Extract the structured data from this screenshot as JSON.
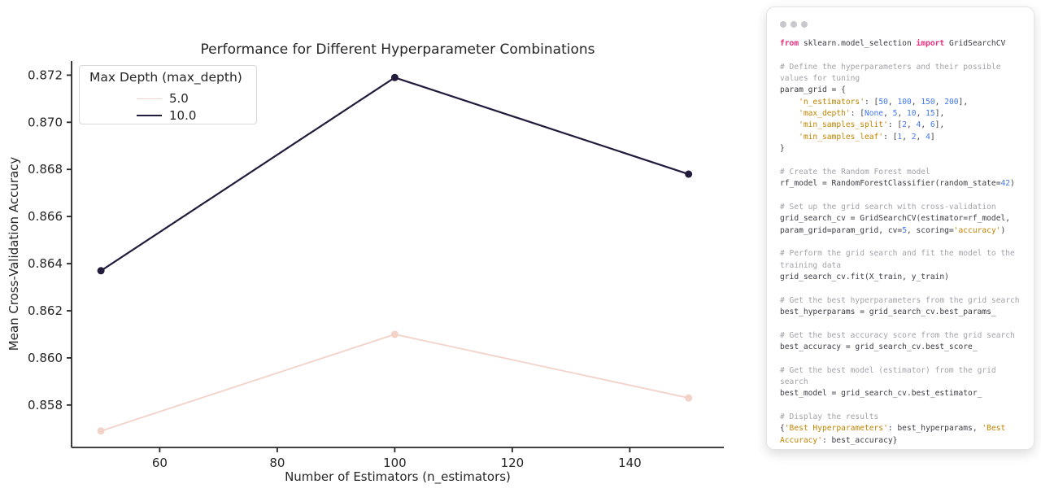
{
  "chart_data": {
    "type": "line",
    "title": "Performance for Different Hyperparameter Combinations",
    "xlabel": "Number of Estimators (n_estimators)",
    "ylabel": "Mean Cross-Validation Accuracy",
    "x": [
      50,
      100,
      150
    ],
    "series": [
      {
        "name": "5.0",
        "color": "#f3d2c9",
        "linewidth": 1.8,
        "values": [
          0.8569,
          0.861,
          0.8583
        ]
      },
      {
        "name": "10.0",
        "color": "#231b3c",
        "linewidth": 2.2,
        "values": [
          0.8637,
          0.8719,
          0.8678
        ]
      }
    ],
    "legend_title": "Max Depth (max_depth)",
    "legend_position": "upper left",
    "xticks": [
      60,
      80,
      100,
      120,
      140
    ],
    "yticks": [
      0.858,
      0.86,
      0.862,
      0.864,
      0.866,
      0.868,
      0.87,
      0.872
    ],
    "xlim": [
      45,
      156
    ],
    "ylim": [
      0.8562,
      0.8726
    ],
    "grid": false,
    "axis_color": "#262626",
    "marker": "circle",
    "marker_radius": 4.5
  },
  "code_panel": {
    "dot_count": 3,
    "dot_color": "#c9c9cd",
    "colors": {
      "plain": "#3b3b43",
      "comment": "#a2a3a9",
      "keyword": "#ec2d7c",
      "string": "#c18401",
      "number": "#4078f2"
    },
    "lines": [
      {
        "tokens": [
          {
            "c": "keyword",
            "t": "from"
          },
          {
            "c": "plain",
            "t": " sklearn.model_selection "
          },
          {
            "c": "keyword",
            "t": "import"
          },
          {
            "c": "plain",
            "t": " GridSearchCV"
          }
        ]
      },
      {
        "tokens": []
      },
      {
        "tokens": [
          {
            "c": "comment",
            "t": "# Define the hyperparameters and their possible"
          }
        ]
      },
      {
        "tokens": [
          {
            "c": "comment",
            "t": "values for tuning"
          }
        ]
      },
      {
        "tokens": [
          {
            "c": "plain",
            "t": "param_grid = {"
          }
        ]
      },
      {
        "tokens": [
          {
            "c": "plain",
            "t": "    "
          },
          {
            "c": "string",
            "t": "'n_estimators'"
          },
          {
            "c": "plain",
            "t": ": ["
          },
          {
            "c": "number",
            "t": "50"
          },
          {
            "c": "plain",
            "t": ", "
          },
          {
            "c": "number",
            "t": "100"
          },
          {
            "c": "plain",
            "t": ", "
          },
          {
            "c": "number",
            "t": "150"
          },
          {
            "c": "plain",
            "t": ", "
          },
          {
            "c": "number",
            "t": "200"
          },
          {
            "c": "plain",
            "t": "],"
          }
        ]
      },
      {
        "tokens": [
          {
            "c": "plain",
            "t": "    "
          },
          {
            "c": "string",
            "t": "'max_depth'"
          },
          {
            "c": "plain",
            "t": ": ["
          },
          {
            "c": "number",
            "t": "None"
          },
          {
            "c": "plain",
            "t": ", "
          },
          {
            "c": "number",
            "t": "5"
          },
          {
            "c": "plain",
            "t": ", "
          },
          {
            "c": "number",
            "t": "10"
          },
          {
            "c": "plain",
            "t": ", "
          },
          {
            "c": "number",
            "t": "15"
          },
          {
            "c": "plain",
            "t": "],"
          }
        ]
      },
      {
        "tokens": [
          {
            "c": "plain",
            "t": "    "
          },
          {
            "c": "string",
            "t": "'min_samples_split'"
          },
          {
            "c": "plain",
            "t": ": ["
          },
          {
            "c": "number",
            "t": "2"
          },
          {
            "c": "plain",
            "t": ", "
          },
          {
            "c": "number",
            "t": "4"
          },
          {
            "c": "plain",
            "t": ", "
          },
          {
            "c": "number",
            "t": "6"
          },
          {
            "c": "plain",
            "t": "],"
          }
        ]
      },
      {
        "tokens": [
          {
            "c": "plain",
            "t": "    "
          },
          {
            "c": "string",
            "t": "'min_samples_leaf'"
          },
          {
            "c": "plain",
            "t": ": ["
          },
          {
            "c": "number",
            "t": "1"
          },
          {
            "c": "plain",
            "t": ", "
          },
          {
            "c": "number",
            "t": "2"
          },
          {
            "c": "plain",
            "t": ", "
          },
          {
            "c": "number",
            "t": "4"
          },
          {
            "c": "plain",
            "t": "]"
          }
        ]
      },
      {
        "tokens": [
          {
            "c": "plain",
            "t": "}"
          }
        ]
      },
      {
        "tokens": []
      },
      {
        "tokens": [
          {
            "c": "comment",
            "t": "# Create the Random Forest model"
          }
        ]
      },
      {
        "tokens": [
          {
            "c": "plain",
            "t": "rf_model = RandomForestClassifier(random_state="
          },
          {
            "c": "number",
            "t": "42"
          },
          {
            "c": "plain",
            "t": ")"
          }
        ]
      },
      {
        "tokens": []
      },
      {
        "tokens": [
          {
            "c": "comment",
            "t": "# Set up the grid search with cross-validation"
          }
        ]
      },
      {
        "tokens": [
          {
            "c": "plain",
            "t": "grid_search_cv = GridSearchCV(estimator=rf_model,"
          }
        ]
      },
      {
        "tokens": [
          {
            "c": "plain",
            "t": "param_grid=param_grid, cv="
          },
          {
            "c": "number",
            "t": "5"
          },
          {
            "c": "plain",
            "t": ", scoring="
          },
          {
            "c": "string",
            "t": "'accuracy'"
          },
          {
            "c": "plain",
            "t": ")"
          }
        ]
      },
      {
        "tokens": []
      },
      {
        "tokens": [
          {
            "c": "comment",
            "t": "# Perform the grid search and fit the model to the"
          }
        ]
      },
      {
        "tokens": [
          {
            "c": "comment",
            "t": "training data"
          }
        ]
      },
      {
        "tokens": [
          {
            "c": "plain",
            "t": "grid_search_cv.fit(X_train, y_train)"
          }
        ]
      },
      {
        "tokens": []
      },
      {
        "tokens": [
          {
            "c": "comment",
            "t": "# Get the best hyperparameters from the grid search"
          }
        ]
      },
      {
        "tokens": [
          {
            "c": "plain",
            "t": "best_hyperparams = grid_search_cv.best_params_"
          }
        ]
      },
      {
        "tokens": []
      },
      {
        "tokens": [
          {
            "c": "comment",
            "t": "# Get the best accuracy score from the grid search"
          }
        ]
      },
      {
        "tokens": [
          {
            "c": "plain",
            "t": "best_accuracy = grid_search_cv.best_score_"
          }
        ]
      },
      {
        "tokens": []
      },
      {
        "tokens": [
          {
            "c": "comment",
            "t": "# Get the best model (estimator) from the grid"
          }
        ]
      },
      {
        "tokens": [
          {
            "c": "comment",
            "t": "search"
          }
        ]
      },
      {
        "tokens": [
          {
            "c": "plain",
            "t": "best_model = grid_search_cv.best_estimator_"
          }
        ]
      },
      {
        "tokens": []
      },
      {
        "tokens": [
          {
            "c": "comment",
            "t": "# Display the results"
          }
        ]
      },
      {
        "tokens": [
          {
            "c": "plain",
            "t": "{"
          },
          {
            "c": "string",
            "t": "'Best Hyperparameters'"
          },
          {
            "c": "plain",
            "t": ": best_hyperparams, "
          },
          {
            "c": "string",
            "t": "'Best"
          }
        ]
      },
      {
        "tokens": [
          {
            "c": "string",
            "t": "Accuracy'"
          },
          {
            "c": "plain",
            "t": ": best_accuracy}"
          }
        ]
      }
    ]
  }
}
